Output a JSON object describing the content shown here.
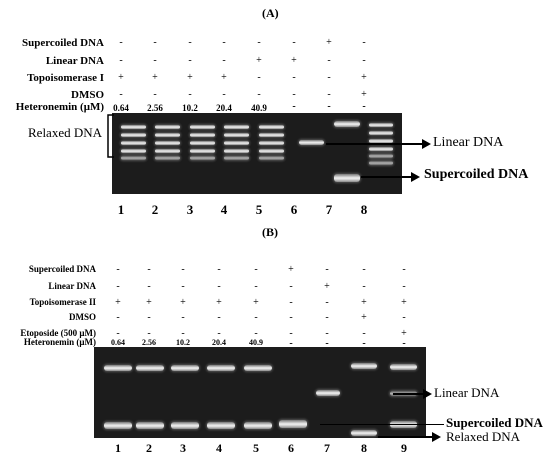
{
  "panelA": {
    "label": "(A)",
    "rows": [
      {
        "label": "Supercoiled DNA",
        "signs": [
          "-",
          "-",
          "-",
          "-",
          "-",
          "-",
          "+",
          "-"
        ]
      },
      {
        "label": "Linear DNA",
        "signs": [
          "-",
          "-",
          "-",
          "-",
          "+",
          "+",
          "-",
          "-"
        ]
      },
      {
        "label": "Topoisomerase I",
        "signs": [
          "+",
          "+",
          "+",
          "+",
          "-",
          "-",
          "-",
          "+"
        ]
      },
      {
        "label": "DMSO",
        "signs": [
          "-",
          "-",
          "-",
          "-",
          "-",
          "-",
          "-",
          "+"
        ]
      }
    ],
    "conc_label": "Heteronemin (μM)",
    "concentrations": [
      "0.64",
      "2.56",
      "10.2",
      "20.4",
      "40.9",
      "-",
      "-",
      "-"
    ],
    "lanes": [
      "1",
      "2",
      "3",
      "4",
      "5",
      "6",
      "7",
      "8"
    ],
    "left_annotation": "Relaxed DNA",
    "right_annotations": {
      "linear": "Linear DNA",
      "supercoiled": "Supercoiled DNA"
    }
  },
  "panelB": {
    "label": "(B)",
    "rows": [
      {
        "label": "Supercoiled DNA",
        "signs": [
          "-",
          "-",
          "-",
          "-",
          "-",
          "+",
          "-",
          "-",
          "-"
        ]
      },
      {
        "label": "Linear DNA",
        "signs": [
          "-",
          "-",
          "-",
          "-",
          "-",
          "-",
          "+",
          "-",
          "-"
        ]
      },
      {
        "label": "Topoisomerase II",
        "signs": [
          "+",
          "+",
          "+",
          "+",
          "+",
          "-",
          "-",
          "+",
          "+"
        ]
      },
      {
        "label": "DMSO",
        "signs": [
          "-",
          "-",
          "-",
          "-",
          "-",
          "-",
          "-",
          "+",
          "-"
        ]
      },
      {
        "label": "Etoposide  (500  μM)",
        "signs": [
          "-",
          "-",
          "-",
          "-",
          "-",
          "-",
          "-",
          "-",
          "+"
        ]
      }
    ],
    "conc_label": "Heteronemin (μM)",
    "concentrations": [
      "0.64",
      "2.56",
      "10.2",
      "20.4",
      "40.9",
      "-",
      "-",
      "-",
      "-"
    ],
    "lanes": [
      "1",
      "2",
      "3",
      "4",
      "5",
      "6",
      "7",
      "8",
      "9"
    ],
    "right_annotations": {
      "linear": "Linear DNA",
      "supercoiled": "Supercoiled DNA",
      "relaxed": "Relaxed DNA"
    }
  }
}
